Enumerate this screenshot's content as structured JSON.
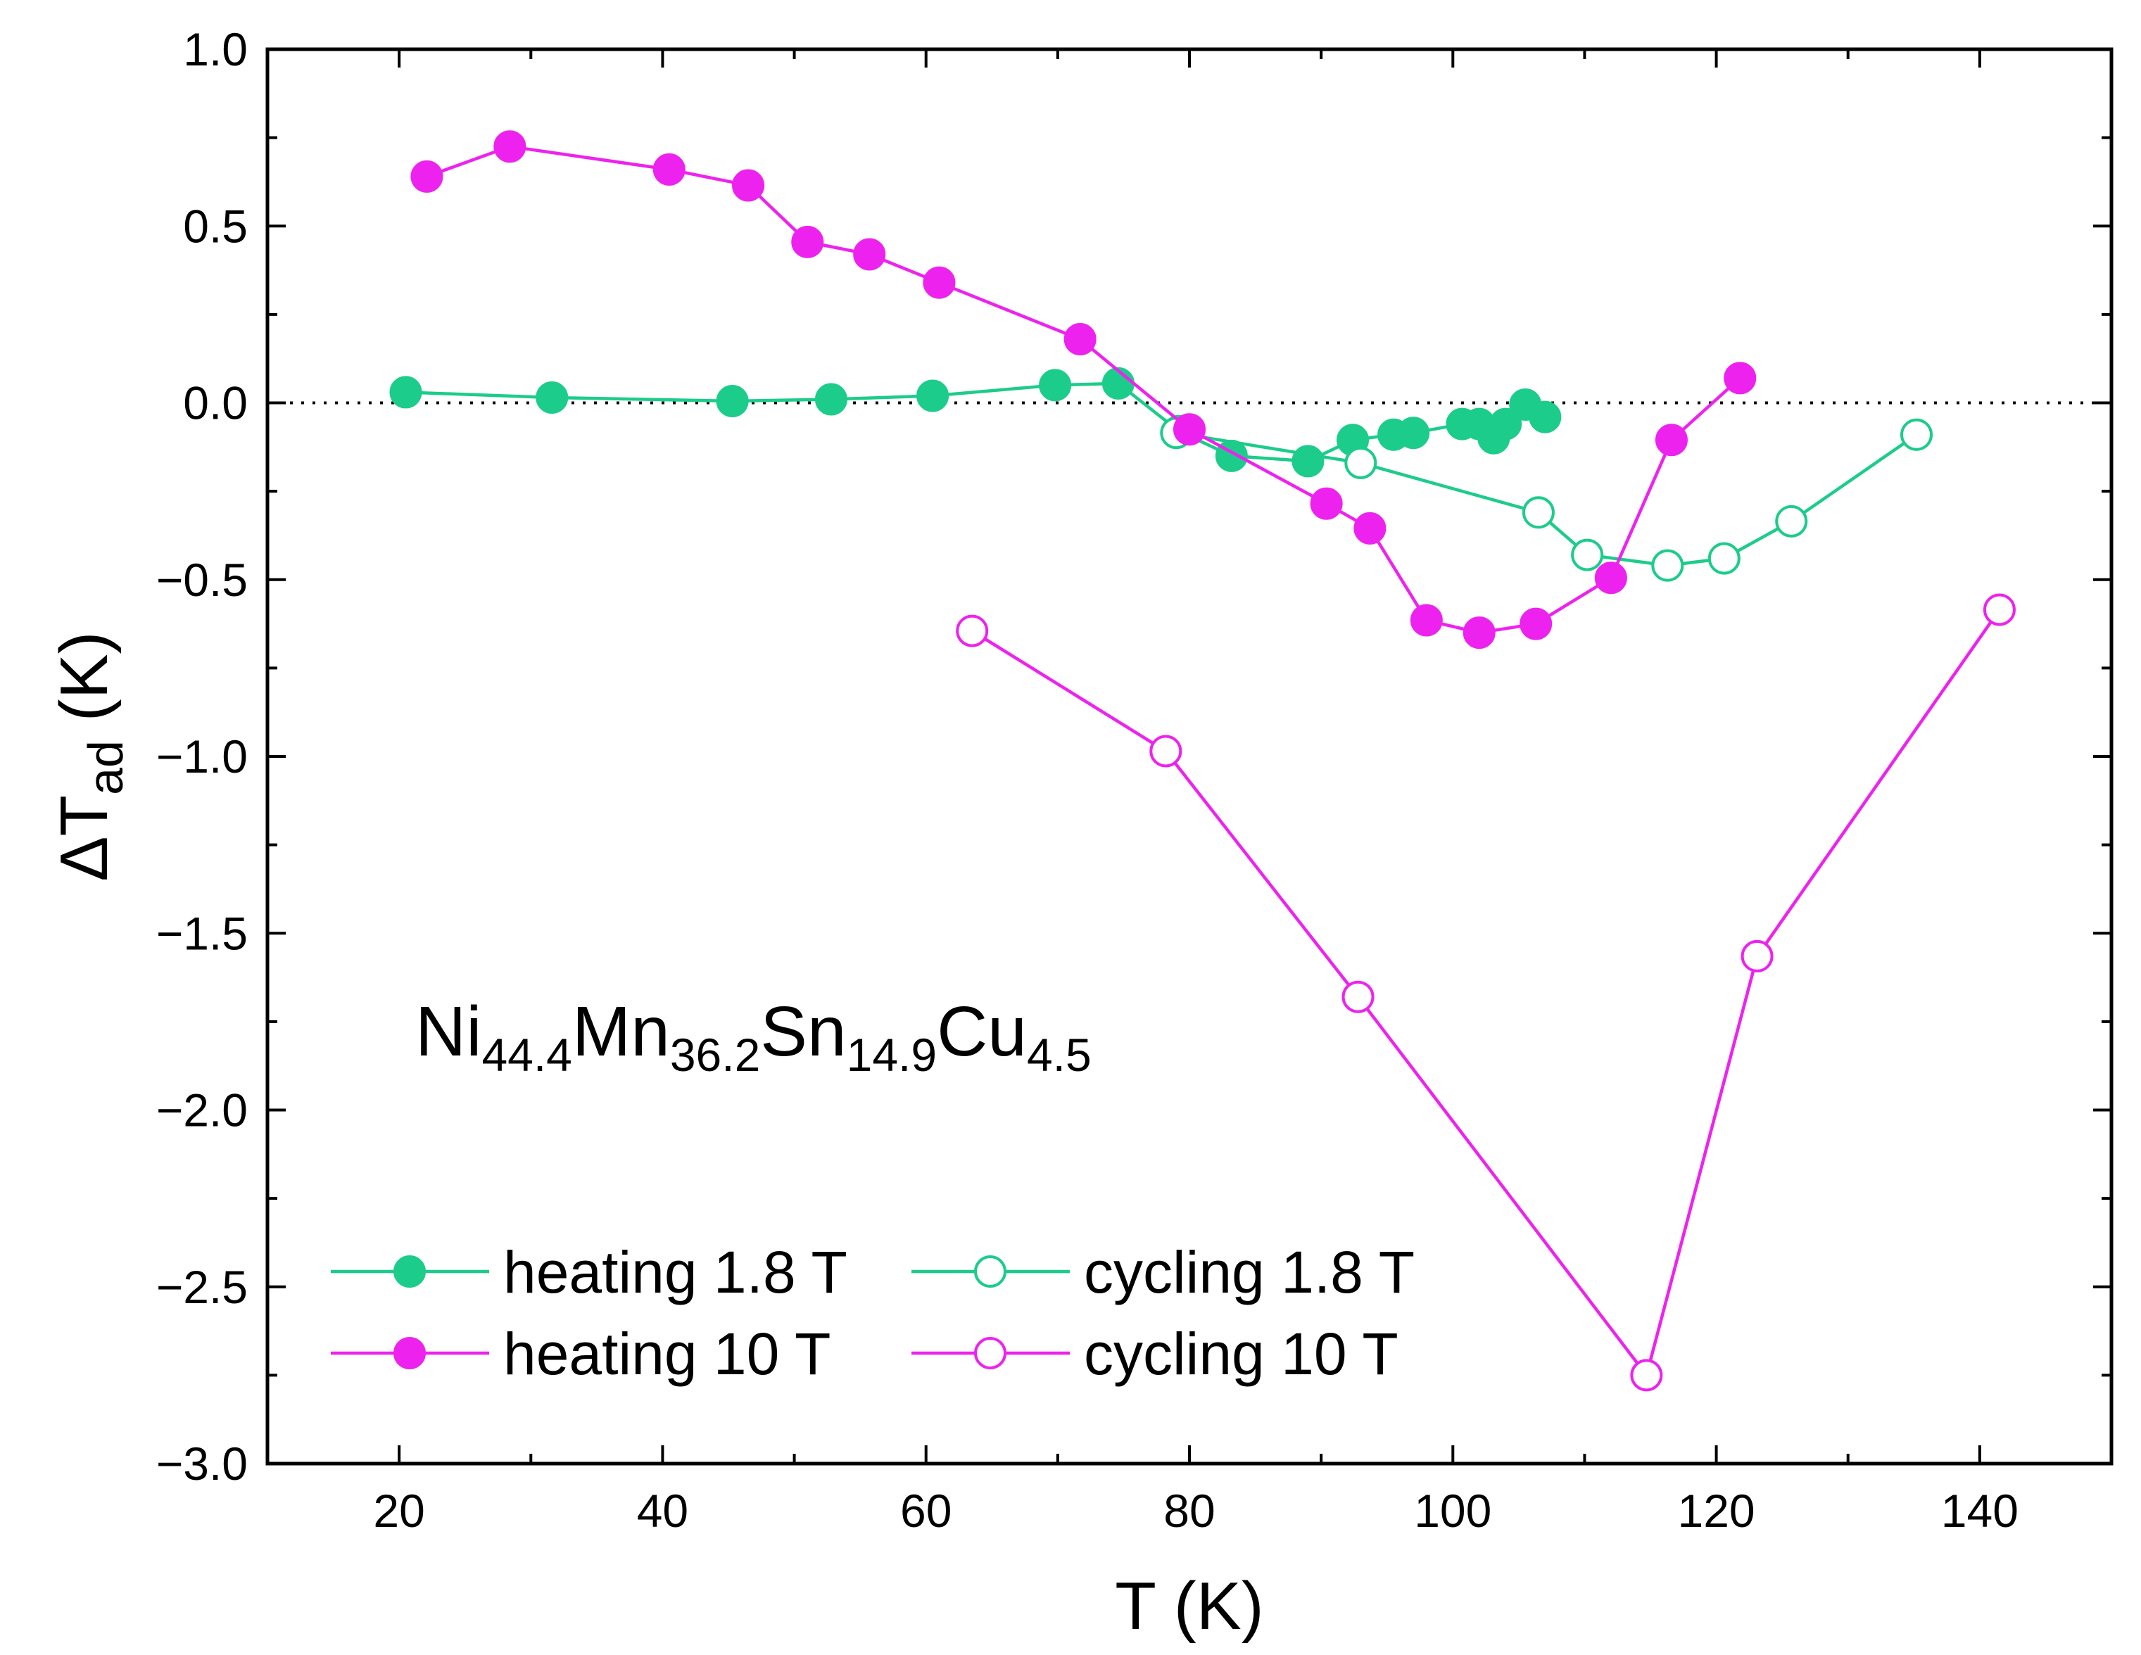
{
  "chart_data": {
    "type": "line",
    "xlabel": "T (K)",
    "ylabel": {
      "base": "ΔT",
      "sub": "ad",
      "unit": " (K)"
    },
    "xlim": [
      10,
      150
    ],
    "ylim": [
      -3.0,
      1.0
    ],
    "xticks": [
      20,
      40,
      60,
      80,
      100,
      120,
      140
    ],
    "xtick_labels": [
      "20",
      "40",
      "60",
      "80",
      "100",
      "120",
      "140"
    ],
    "yticks": [
      1.0,
      0.5,
      0.0,
      -0.5,
      -1.0,
      -1.5,
      -2.0,
      -2.5,
      -3.0
    ],
    "ytick_labels": [
      "1.0",
      "0.5",
      "0.0",
      "−0.5",
      "−1.0",
      "−1.5",
      "−2.0",
      "−2.5",
      "−3.0"
    ],
    "reference_line_y": 0.0,
    "grid": false,
    "legend_position": "bottom-left",
    "annotation": {
      "parts": [
        {
          "text": "Ni",
          "sub": false
        },
        {
          "text": "44.4",
          "sub": true
        },
        {
          "text": "Mn",
          "sub": false
        },
        {
          "text": "36.2",
          "sub": true
        },
        {
          "text": "Sn",
          "sub": false
        },
        {
          "text": "14.9",
          "sub": true
        },
        {
          "text": "Cu",
          "sub": false
        },
        {
          "text": "4.5",
          "sub": true
        }
      ]
    },
    "series": [
      {
        "name": "heating 1.8 T",
        "color": "#1ccc8a",
        "filled": true,
        "x": [
          20.5,
          31.6,
          45.3,
          52.8,
          60.5,
          69.8,
          74.6,
          79.2,
          83.2,
          89.0,
          92.4,
          95.5,
          97.0,
          100.7,
          102.0,
          103.1,
          104.0,
          105.5,
          107.0
        ],
        "y": [
          0.03,
          0.015,
          0.005,
          0.01,
          0.02,
          0.05,
          0.055,
          -0.08,
          -0.15,
          -0.165,
          -0.105,
          -0.09,
          -0.085,
          -0.06,
          -0.06,
          -0.1,
          -0.06,
          -0.005,
          -0.04
        ]
      },
      {
        "name": "cycling 1.8 T",
        "color": "#1ccc8a",
        "filled": false,
        "x": [
          79.0,
          93.0,
          106.5,
          110.2,
          116.3,
          120.6,
          125.7,
          135.2
        ],
        "y": [
          -0.085,
          -0.17,
          -0.31,
          -0.43,
          -0.46,
          -0.44,
          -0.335,
          -0.09
        ]
      },
      {
        "name": "heating 10 T",
        "color": "#ee22ee",
        "filled": true,
        "x": [
          22.1,
          28.4,
          40.5,
          46.5,
          51.0,
          55.7,
          61.0,
          71.7,
          80.0,
          90.4,
          93.7,
          98.0,
          102.0,
          106.3,
          112.0,
          116.6,
          121.8
        ],
        "y": [
          0.64,
          0.725,
          0.66,
          0.615,
          0.455,
          0.42,
          0.34,
          0.18,
          -0.075,
          -0.285,
          -0.355,
          -0.615,
          -0.65,
          -0.625,
          -0.495,
          -0.105,
          0.07
        ]
      },
      {
        "name": "cycling 10 T",
        "color": "#ee22ee",
        "filled": false,
        "x": [
          63.5,
          78.2,
          92.8,
          114.7,
          123.1,
          141.5
        ],
        "y": [
          -0.645,
          -0.985,
          -1.68,
          -2.75,
          -1.565,
          -0.585
        ]
      }
    ]
  }
}
